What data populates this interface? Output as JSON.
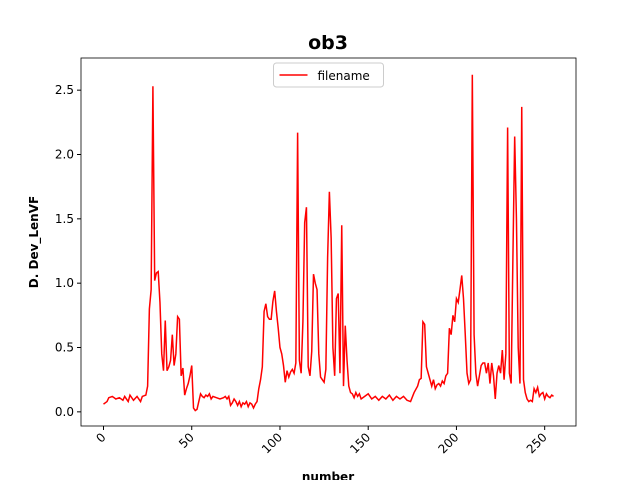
{
  "chart_data": {
    "type": "line",
    "title": "ob3",
    "x_label": "number",
    "y_label": "D. Dev_LenVF",
    "x": [
      0,
      2,
      3,
      5,
      7,
      9,
      11,
      12,
      14,
      15,
      17,
      19,
      21,
      22,
      24,
      25,
      26,
      27,
      28,
      29,
      30,
      31,
      32,
      33,
      34,
      35,
      36,
      37,
      38,
      39,
      40,
      41,
      42,
      43,
      44,
      45,
      46,
      47,
      48,
      49,
      50,
      51,
      52,
      53,
      54,
      55,
      56,
      57,
      58,
      59,
      60,
      61,
      62,
      64,
      66,
      68,
      69,
      70,
      71,
      72,
      73,
      74,
      75,
      76,
      77,
      78,
      79,
      80,
      81,
      82,
      83,
      84,
      85,
      86,
      87,
      88,
      89,
      90,
      91,
      92,
      93,
      94,
      95,
      96,
      97,
      98,
      99,
      100,
      101,
      102,
      103,
      104,
      105,
      106,
      107,
      108,
      109,
      110,
      111,
      112,
      113,
      114,
      115,
      116,
      117,
      118,
      119,
      120,
      121,
      122,
      123,
      124,
      125,
      126,
      127,
      128,
      129,
      130,
      131,
      132,
      133,
      134,
      135,
      136,
      137,
      138,
      139,
      140,
      141,
      142,
      143,
      144,
      145,
      146,
      148,
      150,
      152,
      154,
      156,
      158,
      160,
      162,
      164,
      166,
      168,
      170,
      172,
      174,
      176,
      178,
      179,
      180,
      181,
      182,
      183,
      184,
      185,
      186,
      187,
      188,
      189,
      190,
      191,
      192,
      193,
      194,
      195,
      196,
      197,
      198,
      199,
      200,
      201,
      202,
      203,
      204,
      205,
      206,
      207,
      208,
      209,
      210,
      211,
      212,
      213,
      214,
      215,
      216,
      217,
      218,
      219,
      220,
      221,
      222,
      223,
      224,
      225,
      226,
      227,
      228,
      229,
      230,
      231,
      232,
      233,
      234,
      235,
      236,
      237,
      238,
      239,
      240,
      241,
      242,
      243,
      244,
      245,
      246,
      247,
      248,
      249,
      250,
      251,
      252,
      253,
      254,
      255
    ],
    "series": [
      {
        "name": "filename",
        "color": "#ff0000",
        "values": [
          0.06,
          0.08,
          0.11,
          0.12,
          0.1,
          0.11,
          0.09,
          0.12,
          0.08,
          0.13,
          0.09,
          0.12,
          0.08,
          0.12,
          0.13,
          0.2,
          0.8,
          0.95,
          2.53,
          1.02,
          1.08,
          1.09,
          0.85,
          0.45,
          0.32,
          0.71,
          0.32,
          0.35,
          0.4,
          0.6,
          0.36,
          0.45,
          0.74,
          0.72,
          0.28,
          0.34,
          0.13,
          0.18,
          0.22,
          0.28,
          0.36,
          0.03,
          0.01,
          0.02,
          0.08,
          0.14,
          0.12,
          0.11,
          0.13,
          0.12,
          0.14,
          0.1,
          0.12,
          0.11,
          0.1,
          0.11,
          0.12,
          0.1,
          0.12,
          0.05,
          0.07,
          0.1,
          0.08,
          0.05,
          0.08,
          0.04,
          0.07,
          0.06,
          0.08,
          0.04,
          0.07,
          0.06,
          0.03,
          0.06,
          0.08,
          0.18,
          0.25,
          0.35,
          0.78,
          0.84,
          0.74,
          0.72,
          0.72,
          0.86,
          0.94,
          0.78,
          0.65,
          0.5,
          0.45,
          0.36,
          0.23,
          0.32,
          0.27,
          0.31,
          0.33,
          0.3,
          0.38,
          2.17,
          0.4,
          0.3,
          0.7,
          1.47,
          1.59,
          0.35,
          0.28,
          0.47,
          1.07,
          1.0,
          0.95,
          0.45,
          0.27,
          0.25,
          0.23,
          0.33,
          1.2,
          1.71,
          1.35,
          0.5,
          0.28,
          0.88,
          0.92,
          0.3,
          1.45,
          0.2,
          0.67,
          0.4,
          0.2,
          0.15,
          0.14,
          0.11,
          0.15,
          0.12,
          0.14,
          0.1,
          0.12,
          0.14,
          0.1,
          0.12,
          0.09,
          0.12,
          0.1,
          0.13,
          0.09,
          0.12,
          0.1,
          0.12,
          0.09,
          0.08,
          0.15,
          0.2,
          0.25,
          0.26,
          0.7,
          0.68,
          0.35,
          0.3,
          0.25,
          0.2,
          0.25,
          0.18,
          0.21,
          0.22,
          0.2,
          0.24,
          0.22,
          0.28,
          0.3,
          0.65,
          0.6,
          0.75,
          0.7,
          0.88,
          0.85,
          0.95,
          1.06,
          0.88,
          0.6,
          0.3,
          0.22,
          0.25,
          2.62,
          0.6,
          0.3,
          0.2,
          0.28,
          0.36,
          0.38,
          0.38,
          0.3,
          0.38,
          0.22,
          0.38,
          0.28,
          0.1,
          0.3,
          0.36,
          0.3,
          0.48,
          0.25,
          0.45,
          2.21,
          0.3,
          0.22,
          1.2,
          2.14,
          1.5,
          0.5,
          0.22,
          2.37,
          0.25,
          0.15,
          0.1,
          0.08,
          0.09,
          0.08,
          0.18,
          0.15,
          0.19,
          0.12,
          0.14,
          0.15,
          0.1,
          0.14,
          0.12,
          0.11,
          0.13,
          0.12
        ]
      }
    ],
    "xlim": [
      -12.75,
      267.75
    ],
    "ylim": [
      -0.11,
      2.75
    ],
    "xticks": [
      0,
      50,
      100,
      150,
      200,
      250
    ],
    "yticks": [
      {
        "value": 0,
        "label": "0.0"
      },
      0.5,
      {
        "value": 1,
        "label": "1.0"
      },
      1.5,
      {
        "value": 2,
        "label": "2.0"
      },
      2.5
    ],
    "legend": "upper center"
  }
}
